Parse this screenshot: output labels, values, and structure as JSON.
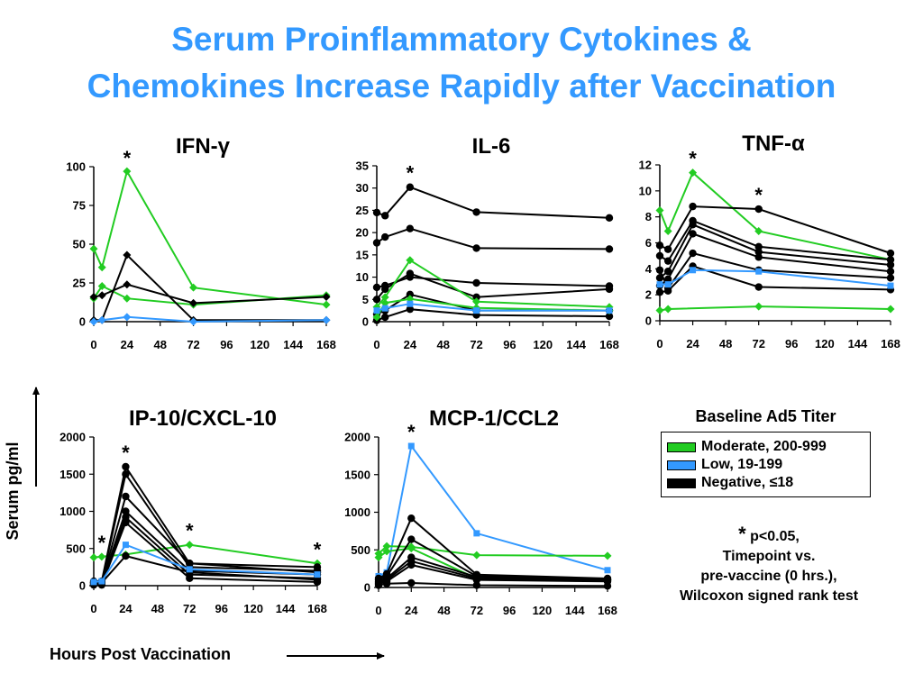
{
  "title_line1": "Serum Proinflammatory Cytokines &",
  "title_line2": "Chemokines Increase Rapidly after Vaccination",
  "xlabel": "Hours Post Vaccination",
  "ylabel": "Serum pg/ml",
  "legend": {
    "title": "Baseline Ad5 Titer",
    "items": [
      {
        "label": "Moderate,  200-999",
        "color": "#22cc22"
      },
      {
        "label": "Low, 19-199",
        "color": "#3399ff"
      },
      {
        "label": "Negative, ≤18",
        "color": "#000000"
      }
    ]
  },
  "note": {
    "star": "*",
    "line1": "p<0.05,",
    "line2": "Timepoint vs.",
    "line3": "pre-vaccine (0 hrs.),",
    "line4": "Wilcoxon signed rank test"
  },
  "colors": {
    "title": "#3399ff",
    "moderate": "#22cc22",
    "low": "#3399ff",
    "negative": "#000000"
  },
  "chart_data": [
    {
      "type": "line",
      "title": "IFN-γ",
      "xticks": [
        0,
        24,
        48,
        72,
        96,
        120,
        144,
        168
      ],
      "yticks": [
        0,
        25,
        50,
        75,
        100
      ],
      "xlim": [
        0,
        168
      ],
      "ylim": [
        0,
        100
      ],
      "stars": [
        24
      ],
      "series": [
        {
          "group": "moderate",
          "marker": "diamond",
          "x": [
            0,
            6,
            24,
            72,
            168
          ],
          "y": [
            47,
            35,
            97,
            22,
            11
          ]
        },
        {
          "group": "moderate",
          "marker": "diamond",
          "x": [
            0,
            6,
            24,
            72,
            168
          ],
          "y": [
            15,
            23,
            15,
            11,
            17
          ]
        },
        {
          "group": "negative",
          "marker": "diamond",
          "x": [
            0,
            6,
            24,
            72,
            168
          ],
          "y": [
            1,
            1,
            43,
            1,
            1
          ]
        },
        {
          "group": "negative",
          "marker": "diamond",
          "x": [
            0,
            6,
            24,
            72,
            168
          ],
          "y": [
            16,
            17,
            24,
            12,
            16
          ]
        },
        {
          "group": "low",
          "marker": "diamond",
          "x": [
            0,
            6,
            24,
            72,
            168
          ],
          "y": [
            0,
            1,
            3,
            0,
            1
          ]
        }
      ]
    },
    {
      "type": "line",
      "title": "IL-6",
      "xticks": [
        0,
        24,
        48,
        72,
        96,
        120,
        144,
        168
      ],
      "yticks": [
        0,
        5,
        10,
        15,
        20,
        25,
        30,
        35
      ],
      "xlim": [
        0,
        168
      ],
      "ylim": [
        0,
        35
      ],
      "stars": [
        24
      ],
      "series": [
        {
          "group": "negative",
          "marker": "circle",
          "x": [
            0,
            6,
            24,
            72,
            168
          ],
          "y": [
            24.5,
            23.8,
            30.2,
            24.6,
            23.3
          ]
        },
        {
          "group": "negative",
          "marker": "circle",
          "x": [
            0,
            6,
            24,
            72,
            168
          ],
          "y": [
            17.7,
            19,
            20.9,
            16.5,
            16.3
          ]
        },
        {
          "group": "negative",
          "marker": "circle",
          "x": [
            0,
            6,
            24,
            72,
            168
          ],
          "y": [
            7.7,
            8.1,
            10,
            8.7,
            8
          ]
        },
        {
          "group": "negative",
          "marker": "circle",
          "x": [
            0,
            6,
            24,
            72,
            168
          ],
          "y": [
            5,
            7.3,
            10.8,
            5.5,
            7.3
          ]
        },
        {
          "group": "negative",
          "marker": "circle",
          "x": [
            0,
            6,
            24,
            72,
            168
          ],
          "y": [
            1.7,
            2.5,
            6.1,
            2.5,
            2.5
          ]
        },
        {
          "group": "negative",
          "marker": "circle",
          "x": [
            0,
            6,
            24,
            72,
            168
          ],
          "y": [
            0.3,
            1,
            2.8,
            1.5,
            1.2
          ]
        },
        {
          "group": "moderate",
          "marker": "diamond",
          "x": [
            0,
            6,
            24,
            72,
            168
          ],
          "y": [
            3.3,
            5.5,
            13.8,
            4.5,
            3.3
          ]
        },
        {
          "group": "moderate",
          "marker": "diamond",
          "x": [
            0,
            6,
            24,
            72,
            168
          ],
          "y": [
            1,
            4.2,
            5.1,
            3.1,
            2.5
          ]
        },
        {
          "group": "low",
          "marker": "square",
          "x": [
            0,
            6,
            24,
            72,
            168
          ],
          "y": [
            2.5,
            3,
            4,
            2.5,
            2.5
          ]
        }
      ]
    },
    {
      "type": "line",
      "title": "TNF-α",
      "xticks": [
        0,
        24,
        48,
        72,
        96,
        120,
        144,
        168
      ],
      "yticks": [
        0,
        2,
        4,
        6,
        8,
        10,
        12
      ],
      "xlim": [
        0,
        168
      ],
      "ylim": [
        0,
        12
      ],
      "stars": [
        24,
        72
      ],
      "series": [
        {
          "group": "moderate",
          "marker": "diamond",
          "x": [
            0,
            6,
            24,
            72,
            168
          ],
          "y": [
            8.5,
            6.9,
            11.4,
            6.9,
            4.7
          ]
        },
        {
          "group": "moderate",
          "marker": "diamond",
          "x": [
            0,
            6,
            72,
            168
          ],
          "y": [
            0.8,
            0.9,
            1.1,
            0.9
          ]
        },
        {
          "group": "negative",
          "marker": "circle",
          "x": [
            0,
            6,
            24,
            72,
            168
          ],
          "y": [
            5.8,
            5.5,
            8.8,
            8.6,
            5.2
          ]
        },
        {
          "group": "negative",
          "marker": "circle",
          "x": [
            0,
            6,
            24,
            72,
            168
          ],
          "y": [
            5,
            4.6,
            7.7,
            5.7,
            4.7
          ]
        },
        {
          "group": "negative",
          "marker": "circle",
          "x": [
            0,
            6,
            24,
            72,
            168
          ],
          "y": [
            3.3,
            3.8,
            7.4,
            5.3,
            4.3
          ]
        },
        {
          "group": "negative",
          "marker": "circle",
          "x": [
            0,
            6,
            24,
            72,
            168
          ],
          "y": [
            2.7,
            3.2,
            6.7,
            4.9,
            3.8
          ]
        },
        {
          "group": "negative",
          "marker": "circle",
          "x": [
            0,
            6,
            24,
            72,
            168
          ],
          "y": [
            3.9,
            2.5,
            5.2,
            3.9,
            3.3
          ]
        },
        {
          "group": "negative",
          "marker": "circle",
          "x": [
            0,
            6,
            24,
            72,
            168
          ],
          "y": [
            2.2,
            2.3,
            4.2,
            2.6,
            2.4
          ]
        },
        {
          "group": "low",
          "marker": "square",
          "x": [
            0,
            6,
            24,
            72,
            168
          ],
          "y": [
            2.8,
            2.8,
            3.9,
            3.8,
            2.7
          ]
        }
      ]
    },
    {
      "type": "line",
      "title": "IP-10/CXCL-10",
      "xticks": [
        0,
        24,
        48,
        72,
        96,
        120,
        144,
        168
      ],
      "yticks": [
        0,
        500,
        1000,
        1500,
        2000
      ],
      "xlim": [
        0,
        168
      ],
      "ylim": [
        0,
        2000
      ],
      "stars": [
        6,
        24,
        72,
        168
      ],
      "series": [
        {
          "group": "moderate",
          "marker": "diamond",
          "x": [
            0,
            6,
            24,
            72,
            168
          ],
          "y": [
            380,
            390,
            420,
            550,
            300
          ]
        },
        {
          "group": "negative",
          "marker": "circle",
          "x": [
            0,
            6,
            24,
            72,
            168
          ],
          "y": [
            60,
            60,
            1600,
            300,
            250
          ]
        },
        {
          "group": "negative",
          "marker": "circle",
          "x": [
            0,
            6,
            24,
            72,
            168
          ],
          "y": [
            50,
            50,
            1500,
            250,
            200
          ]
        },
        {
          "group": "negative",
          "marker": "circle",
          "x": [
            0,
            6,
            24,
            72,
            168
          ],
          "y": [
            40,
            40,
            1200,
            300,
            180
          ]
        },
        {
          "group": "negative",
          "marker": "circle",
          "x": [
            0,
            6,
            24,
            72,
            168
          ],
          "y": [
            30,
            30,
            1000,
            200,
            150
          ]
        },
        {
          "group": "negative",
          "marker": "circle",
          "x": [
            0,
            6,
            24,
            72,
            168
          ],
          "y": [
            20,
            20,
            920,
            150,
            100
          ]
        },
        {
          "group": "negative",
          "marker": "circle",
          "x": [
            0,
            6,
            24,
            72,
            168
          ],
          "y": [
            10,
            10,
            850,
            100,
            50
          ]
        },
        {
          "group": "negative",
          "marker": "circle",
          "x": [
            0,
            6,
            24,
            72,
            168
          ],
          "y": [
            40,
            40,
            400,
            180,
            80
          ]
        },
        {
          "group": "low",
          "marker": "square",
          "x": [
            0,
            6,
            24,
            72,
            168
          ],
          "y": [
            50,
            60,
            550,
            220,
            150
          ]
        }
      ]
    },
    {
      "type": "line",
      "title": "MCP-1/CCL2",
      "xticks": [
        0,
        24,
        48,
        72,
        96,
        120,
        144,
        168
      ],
      "yticks": [
        0,
        500,
        1000,
        1500,
        2000
      ],
      "xlim": [
        0,
        168
      ],
      "ylim": [
        0,
        2000
      ],
      "stars": [
        24
      ],
      "series": [
        {
          "group": "low",
          "marker": "square",
          "x": [
            0,
            6,
            24,
            72,
            168
          ],
          "y": [
            150,
            200,
            1880,
            720,
            230
          ]
        },
        {
          "group": "moderate",
          "marker": "diamond",
          "x": [
            0,
            6,
            24,
            72,
            168
          ],
          "y": [
            450,
            550,
            540,
            430,
            420
          ]
        },
        {
          "group": "moderate",
          "marker": "diamond",
          "x": [
            0,
            6,
            24,
            72,
            168
          ],
          "y": [
            400,
            480,
            520,
            120,
            100
          ]
        },
        {
          "group": "negative",
          "marker": "circle",
          "x": [
            0,
            6,
            24,
            72,
            168
          ],
          "y": [
            120,
            180,
            920,
            170,
            120
          ]
        },
        {
          "group": "negative",
          "marker": "circle",
          "x": [
            0,
            6,
            24,
            72,
            168
          ],
          "y": [
            100,
            150,
            640,
            150,
            110
          ]
        },
        {
          "group": "negative",
          "marker": "circle",
          "x": [
            0,
            6,
            24,
            72,
            168
          ],
          "y": [
            80,
            120,
            400,
            140,
            100
          ]
        },
        {
          "group": "negative",
          "marker": "circle",
          "x": [
            0,
            6,
            24,
            72,
            168
          ],
          "y": [
            60,
            100,
            350,
            120,
            90
          ]
        },
        {
          "group": "negative",
          "marker": "circle",
          "x": [
            0,
            6,
            24,
            72,
            168
          ],
          "y": [
            50,
            80,
            300,
            100,
            80
          ]
        },
        {
          "group": "negative",
          "marker": "circle",
          "x": [
            0,
            6,
            24,
            72,
            168
          ],
          "y": [
            30,
            50,
            60,
            30,
            20
          ]
        }
      ]
    }
  ]
}
